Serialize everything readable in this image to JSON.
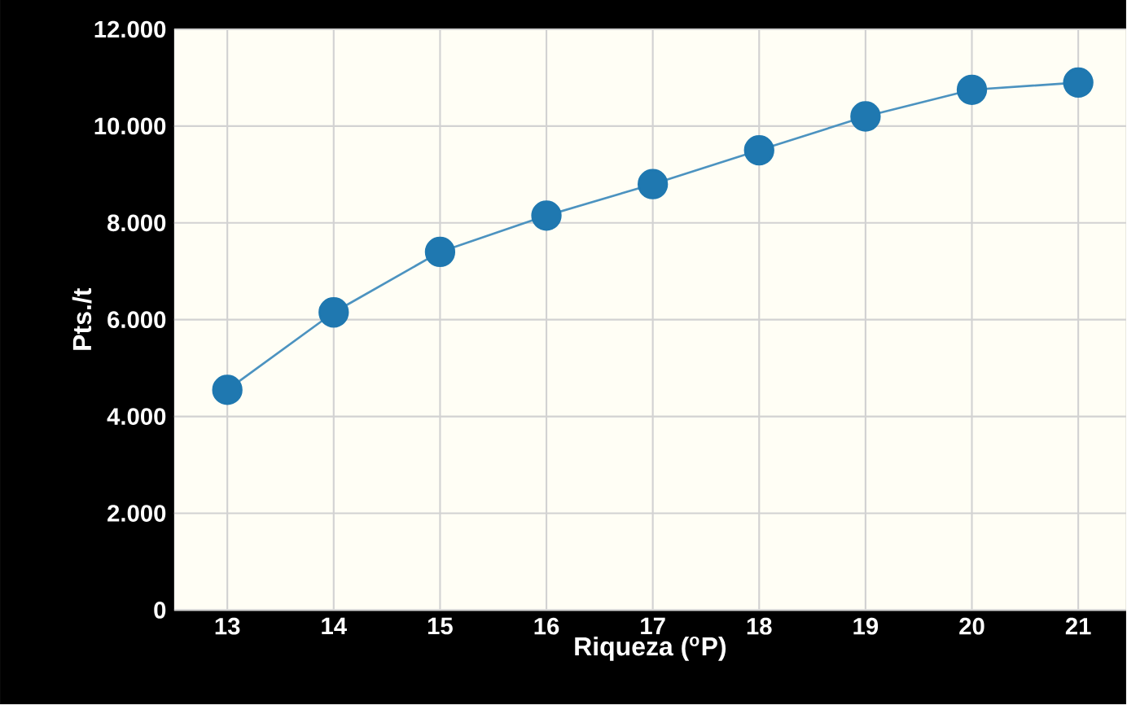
{
  "chart_data": {
    "type": "line",
    "xlabel": "Riqueza ($^{o}$P)",
    "ylabel": "Pts./t",
    "categories": [
      "13",
      "14",
      "15",
      "16",
      "17",
      "18",
      "19",
      "20",
      "21"
    ],
    "series": [
      {
        "color": "#1f78b0",
        "values": [
          4550,
          6150,
          7400,
          8150,
          8800,
          9500,
          10200,
          10750,
          10900
        ]
      }
    ],
    "ylim": [
      0,
      12000
    ],
    "yticks": [
      {
        "value": 0,
        "label": "0"
      },
      {
        "value": 2000,
        "label": "2.000"
      },
      {
        "value": 4000,
        "label": "4.000"
      },
      {
        "value": 6000,
        "label": "6.000"
      },
      {
        "value": 8000,
        "label": "8.000"
      },
      {
        "value": 10000,
        "label": "10.000"
      },
      {
        "value": 12000,
        "label": "12.000"
      }
    ],
    "grid": true,
    "marker": "circle",
    "line_style": "solid"
  }
}
